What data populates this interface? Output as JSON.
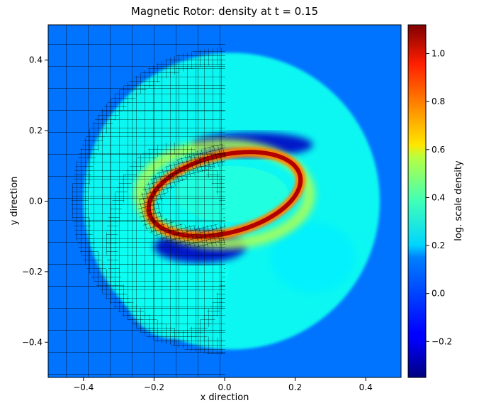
{
  "chart_data": {
    "type": "heatmap",
    "title": "Magnetic Rotor: density at t = 0.15",
    "xlabel": "x direction",
    "ylabel": "y direction",
    "xlim": [
      -0.5,
      0.5
    ],
    "ylim": [
      -0.5,
      0.5
    ],
    "x_ticks": [
      -0.4,
      -0.2,
      0.0,
      0.2,
      0.4
    ],
    "x_tick_labels": [
      "−0.4",
      "−0.2",
      "0.0",
      "0.2",
      "0.4"
    ],
    "y_ticks": [
      -0.4,
      -0.2,
      0.0,
      0.2,
      0.4
    ],
    "y_tick_labels": [
      "−0.4",
      "−0.2",
      "0.0",
      "0.2",
      "0.4"
    ],
    "colorbar": {
      "label": "log. scale density",
      "range": [
        -0.35,
        1.12
      ],
      "ticks": [
        -0.2,
        0.0,
        0.2,
        0.4,
        0.6,
        0.8,
        1.0
      ],
      "tick_labels": [
        "−0.2",
        "0.0",
        "0.2",
        "0.4",
        "0.6",
        "0.8",
        "1.0"
      ],
      "colormap": "jet"
    },
    "field_features": {
      "background_value": 0.0,
      "dense_ring": {
        "center": [
          0.0,
          0.02
        ],
        "radius_x": 0.22,
        "radius_y": 0.11,
        "value": 1.05
      },
      "inner_cavity_value": 0.25,
      "outer_shell": {
        "center": [
          0.0,
          0.0
        ],
        "radius": 0.42,
        "value": 0.22
      },
      "low_density_lobes_value": -0.25
    },
    "grid": "AMR mesh overlay on left half (x < 0)"
  }
}
